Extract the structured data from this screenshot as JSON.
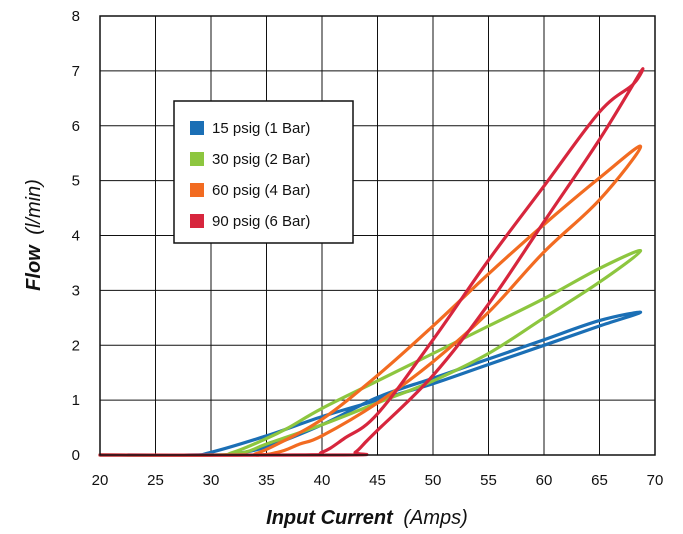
{
  "chart_data": {
    "type": "line",
    "xlabel": "Input Current",
    "xlabel_unit": "(Amps)",
    "ylabel": "Flow",
    "ylabel_unit": "(l/min)",
    "xlim": [
      20,
      70
    ],
    "ylim": [
      0,
      8
    ],
    "x_ticks": [
      "20",
      "25",
      "30",
      "35",
      "40",
      "45",
      "50",
      "55",
      "60",
      "65",
      "70"
    ],
    "y_ticks": [
      "0",
      "1",
      "2",
      "3",
      "4",
      "5",
      "6",
      "7",
      "8"
    ],
    "grid": true,
    "legend_position": "upper-left",
    "series": [
      {
        "name": "15 psig (1 Bar)",
        "color": "#1b6fb5",
        "up": [
          [
            20,
            0
          ],
          [
            28,
            0
          ],
          [
            30,
            0.05
          ],
          [
            35,
            0.35
          ],
          [
            40,
            0.7
          ],
          [
            45,
            1.0
          ],
          [
            50,
            1.3
          ],
          [
            55,
            1.65
          ],
          [
            60,
            2.0
          ],
          [
            65,
            2.35
          ],
          [
            68.7,
            2.6
          ]
        ],
        "down": [
          [
            68.7,
            2.6
          ],
          [
            65,
            2.45
          ],
          [
            60,
            2.1
          ],
          [
            55,
            1.75
          ],
          [
            50,
            1.4
          ],
          [
            45,
            1.05
          ],
          [
            40,
            0.55
          ],
          [
            35,
            0.15
          ],
          [
            32,
            0.02
          ],
          [
            30,
            0
          ],
          [
            20,
            0
          ]
        ]
      },
      {
        "name": "30 psig (2 Bar)",
        "color": "#8dc63f",
        "up": [
          [
            20,
            0
          ],
          [
            30,
            0
          ],
          [
            33,
            0.05
          ],
          [
            35,
            0.2
          ],
          [
            40,
            0.55
          ],
          [
            45,
            0.95
          ],
          [
            50,
            1.35
          ],
          [
            55,
            1.85
          ],
          [
            60,
            2.5
          ],
          [
            65,
            3.15
          ],
          [
            68.7,
            3.72
          ]
        ],
        "down": [
          [
            68.7,
            3.72
          ],
          [
            65,
            3.4
          ],
          [
            60,
            2.85
          ],
          [
            55,
            2.35
          ],
          [
            50,
            1.85
          ],
          [
            45,
            1.35
          ],
          [
            40,
            0.85
          ],
          [
            37,
            0.5
          ],
          [
            35,
            0.3
          ],
          [
            32,
            0.05
          ],
          [
            30,
            0
          ],
          [
            20,
            0
          ]
        ]
      },
      {
        "name": "60 psig (4 Bar)",
        "color": "#f26b21",
        "up": [
          [
            20,
            0
          ],
          [
            33,
            0
          ],
          [
            36,
            0.05
          ],
          [
            38,
            0.2
          ],
          [
            40,
            0.35
          ],
          [
            45,
            0.95
          ],
          [
            50,
            1.7
          ],
          [
            55,
            2.6
          ],
          [
            60,
            3.7
          ],
          [
            65,
            4.65
          ],
          [
            68.7,
            5.62
          ]
        ],
        "down": [
          [
            68.7,
            5.62
          ],
          [
            65,
            5.05
          ],
          [
            60,
            4.2
          ],
          [
            55,
            3.3
          ],
          [
            50,
            2.35
          ],
          [
            45,
            1.45
          ],
          [
            40,
            0.65
          ],
          [
            36,
            0.2
          ],
          [
            34,
            0.02
          ],
          [
            33,
            0
          ],
          [
            20,
            0
          ]
        ]
      },
      {
        "name": "90 psig (6 Bar)",
        "color": "#d7263d",
        "up": [
          [
            20,
            0
          ],
          [
            42,
            0
          ],
          [
            43,
            0.05
          ],
          [
            44,
            0.25
          ],
          [
            45,
            0.45
          ],
          [
            50,
            1.45
          ],
          [
            55,
            2.75
          ],
          [
            60,
            4.25
          ],
          [
            65,
            5.75
          ],
          [
            68.7,
            6.98
          ]
        ],
        "down": [
          [
            68.7,
            6.98
          ],
          [
            68,
            6.75
          ],
          [
            65,
            6.25
          ],
          [
            60,
            4.9
          ],
          [
            55,
            3.55
          ],
          [
            50,
            2.1
          ],
          [
            45,
            0.75
          ],
          [
            42,
            0.3
          ],
          [
            40,
            0.05
          ],
          [
            38,
            0
          ],
          [
            20,
            0
          ]
        ]
      }
    ]
  }
}
